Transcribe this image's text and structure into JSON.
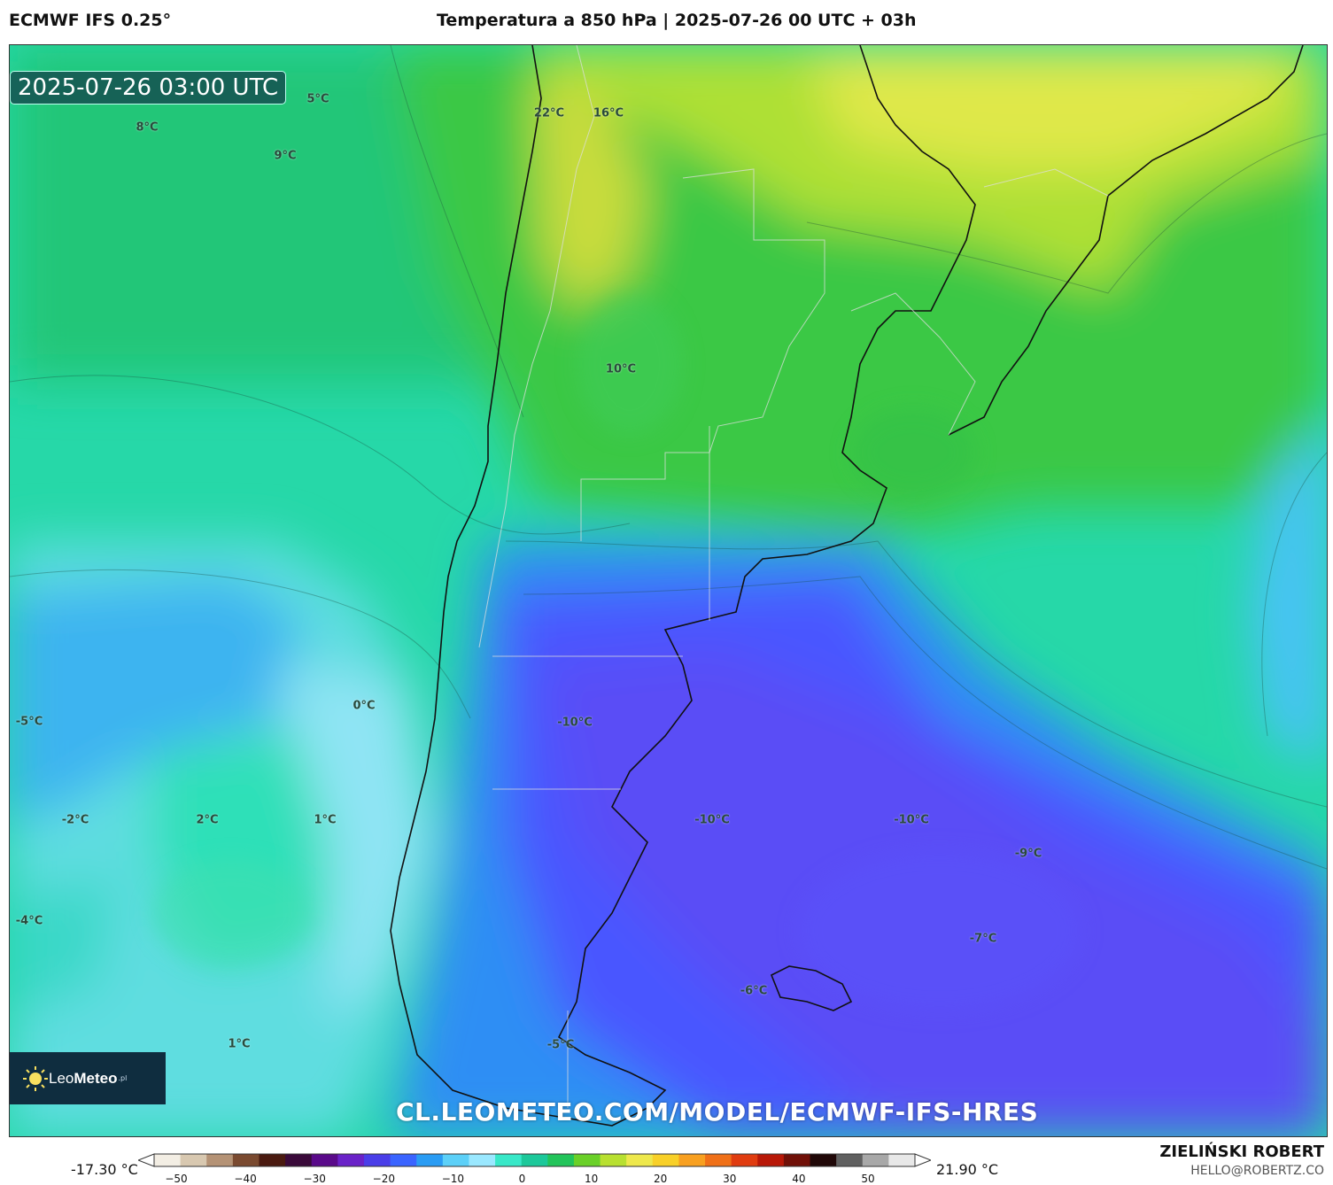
{
  "header": {
    "model": "ECMWF IFS 0.25°",
    "title": "Temperatura a 850 hPa | 2025-07-26 00 UTC + 03h"
  },
  "map": {
    "time_badge": "2025-07-26 03:00 UTC",
    "watermark": "CL.LEOMETEO.COM/MODEL/ECMWF-IFS-HRES",
    "temperature_labels": [
      "5°C",
      "8°C",
      "9°C",
      "22°C",
      "16°C",
      "10°C",
      "0°C",
      "-5°C",
      "-10°C",
      "-2°C",
      "2°C",
      "1°C",
      "-10°C",
      "-10°C",
      "-9°C",
      "-4°C",
      "-7°C",
      "-6°C",
      "1°C",
      "-5°C"
    ]
  },
  "logo": {
    "name_light": "Leo",
    "name_bold": "Meteo",
    "suffix": ".pl"
  },
  "colorbar": {
    "min_label": "-17.30 °C",
    "max_label": "21.90 °C",
    "ticks": [
      "−50",
      "−40",
      "−30",
      "−20",
      "−10",
      "0",
      "10",
      "20",
      "30",
      "40",
      "50"
    ],
    "colors": [
      "#f3eee4",
      "#d8c8b0",
      "#b49275",
      "#7a4a30",
      "#4a1a10",
      "#3a0a3a",
      "#5a0a8a",
      "#6a22c8",
      "#4a3ee8",
      "#3a64ff",
      "#2a9cf4",
      "#5cd0f8",
      "#9ae8ff",
      "#38e8c8",
      "#1cc89a",
      "#22c45a",
      "#6ad028",
      "#b8e030",
      "#eee84c",
      "#f8d028",
      "#f8a020",
      "#f07018",
      "#e03c10",
      "#b81808",
      "#701008",
      "#200808",
      "#606060",
      "#a8a8a8",
      "#e8e8e8"
    ]
  },
  "footer": {
    "author": "ZIELIŃSKI ROBERT",
    "email": "HELLO@ROBERTZ.CO"
  }
}
